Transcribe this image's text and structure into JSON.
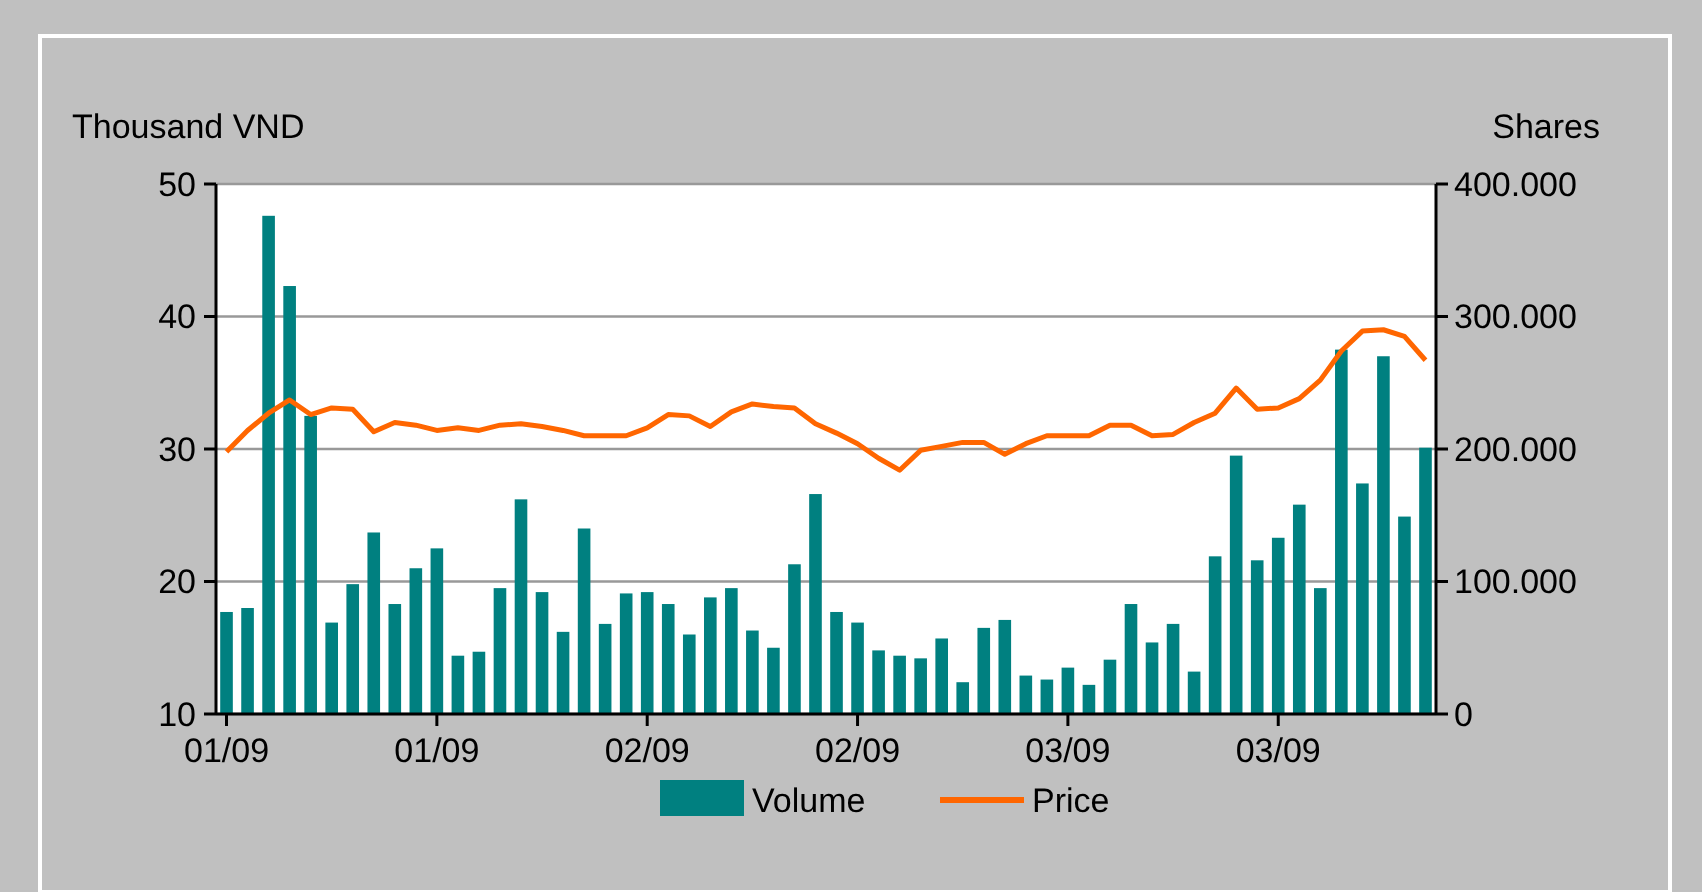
{
  "chart_data": {
    "type": "bar",
    "ylabel": "Thousand VND",
    "y2label": "Shares",
    "categories": [
      "01/09",
      null,
      null,
      null,
      null,
      null,
      null,
      null,
      null,
      null,
      "01/09",
      null,
      null,
      null,
      null,
      null,
      null,
      null,
      null,
      null,
      "02/09",
      null,
      null,
      null,
      null,
      null,
      null,
      null,
      null,
      null,
      "02/09",
      null,
      null,
      null,
      null,
      null,
      null,
      null,
      null,
      null,
      "03/09",
      null,
      null,
      null,
      null,
      null,
      null,
      null,
      null,
      null,
      "03/09",
      null,
      null,
      null,
      null,
      null,
      null,
      null
    ],
    "series": [
      {
        "name": "Volume",
        "axis": "y2",
        "color": "#008080",
        "values": [
          77000,
          80000,
          376000,
          323000,
          225000,
          69000,
          98000,
          137000,
          83000,
          110000,
          125000,
          44000,
          47000,
          95000,
          162000,
          92000,
          62000,
          140000,
          68000,
          91000,
          92000,
          83000,
          60000,
          88000,
          95000,
          63000,
          50000,
          113000,
          166000,
          77000,
          69000,
          48000,
          44000,
          42000,
          57000,
          24000,
          65000,
          71000,
          29000,
          26000,
          35000,
          22000,
          41000,
          83000,
          54000,
          68000,
          32000,
          119000,
          195000,
          116000,
          133000,
          158000,
          95000,
          275000,
          174000,
          270000,
          149000,
          201000
        ]
      },
      {
        "name": "Price",
        "type": "line",
        "color": "#ff6600",
        "values": [
          29.8,
          31.4,
          32.7,
          33.7,
          32.6,
          33.1,
          33.0,
          31.3,
          32.0,
          31.8,
          31.4,
          31.6,
          31.4,
          31.8,
          31.9,
          31.7,
          31.4,
          31.0,
          31.0,
          31.0,
          31.6,
          32.6,
          32.5,
          31.7,
          32.8,
          33.4,
          33.2,
          33.1,
          31.9,
          31.2,
          30.4,
          29.3,
          28.4,
          29.9,
          30.2,
          30.5,
          30.5,
          29.6,
          30.4,
          31.0,
          31.0,
          31.0,
          31.8,
          31.8,
          31.0,
          31.1,
          32.0,
          32.7,
          34.6,
          33.0,
          33.1,
          33.8,
          35.2,
          37.4,
          38.9,
          39.0,
          38.5,
          36.7
        ]
      }
    ],
    "ylim": [
      10,
      50
    ],
    "yticks": [
      10,
      20,
      30,
      40,
      50
    ],
    "y2lim": [
      0,
      400000
    ],
    "y2ticks": [
      {
        "value": 0,
        "label": "0"
      },
      {
        "value": 100000,
        "label": "100.000"
      },
      {
        "value": 200000,
        "label": "200.000"
      },
      {
        "value": 300000,
        "label": "300.000"
      },
      {
        "value": 400000,
        "label": "400.000"
      }
    ],
    "grid": "y",
    "legend": "bottom",
    "marker": "none",
    "line_style": "solid"
  }
}
